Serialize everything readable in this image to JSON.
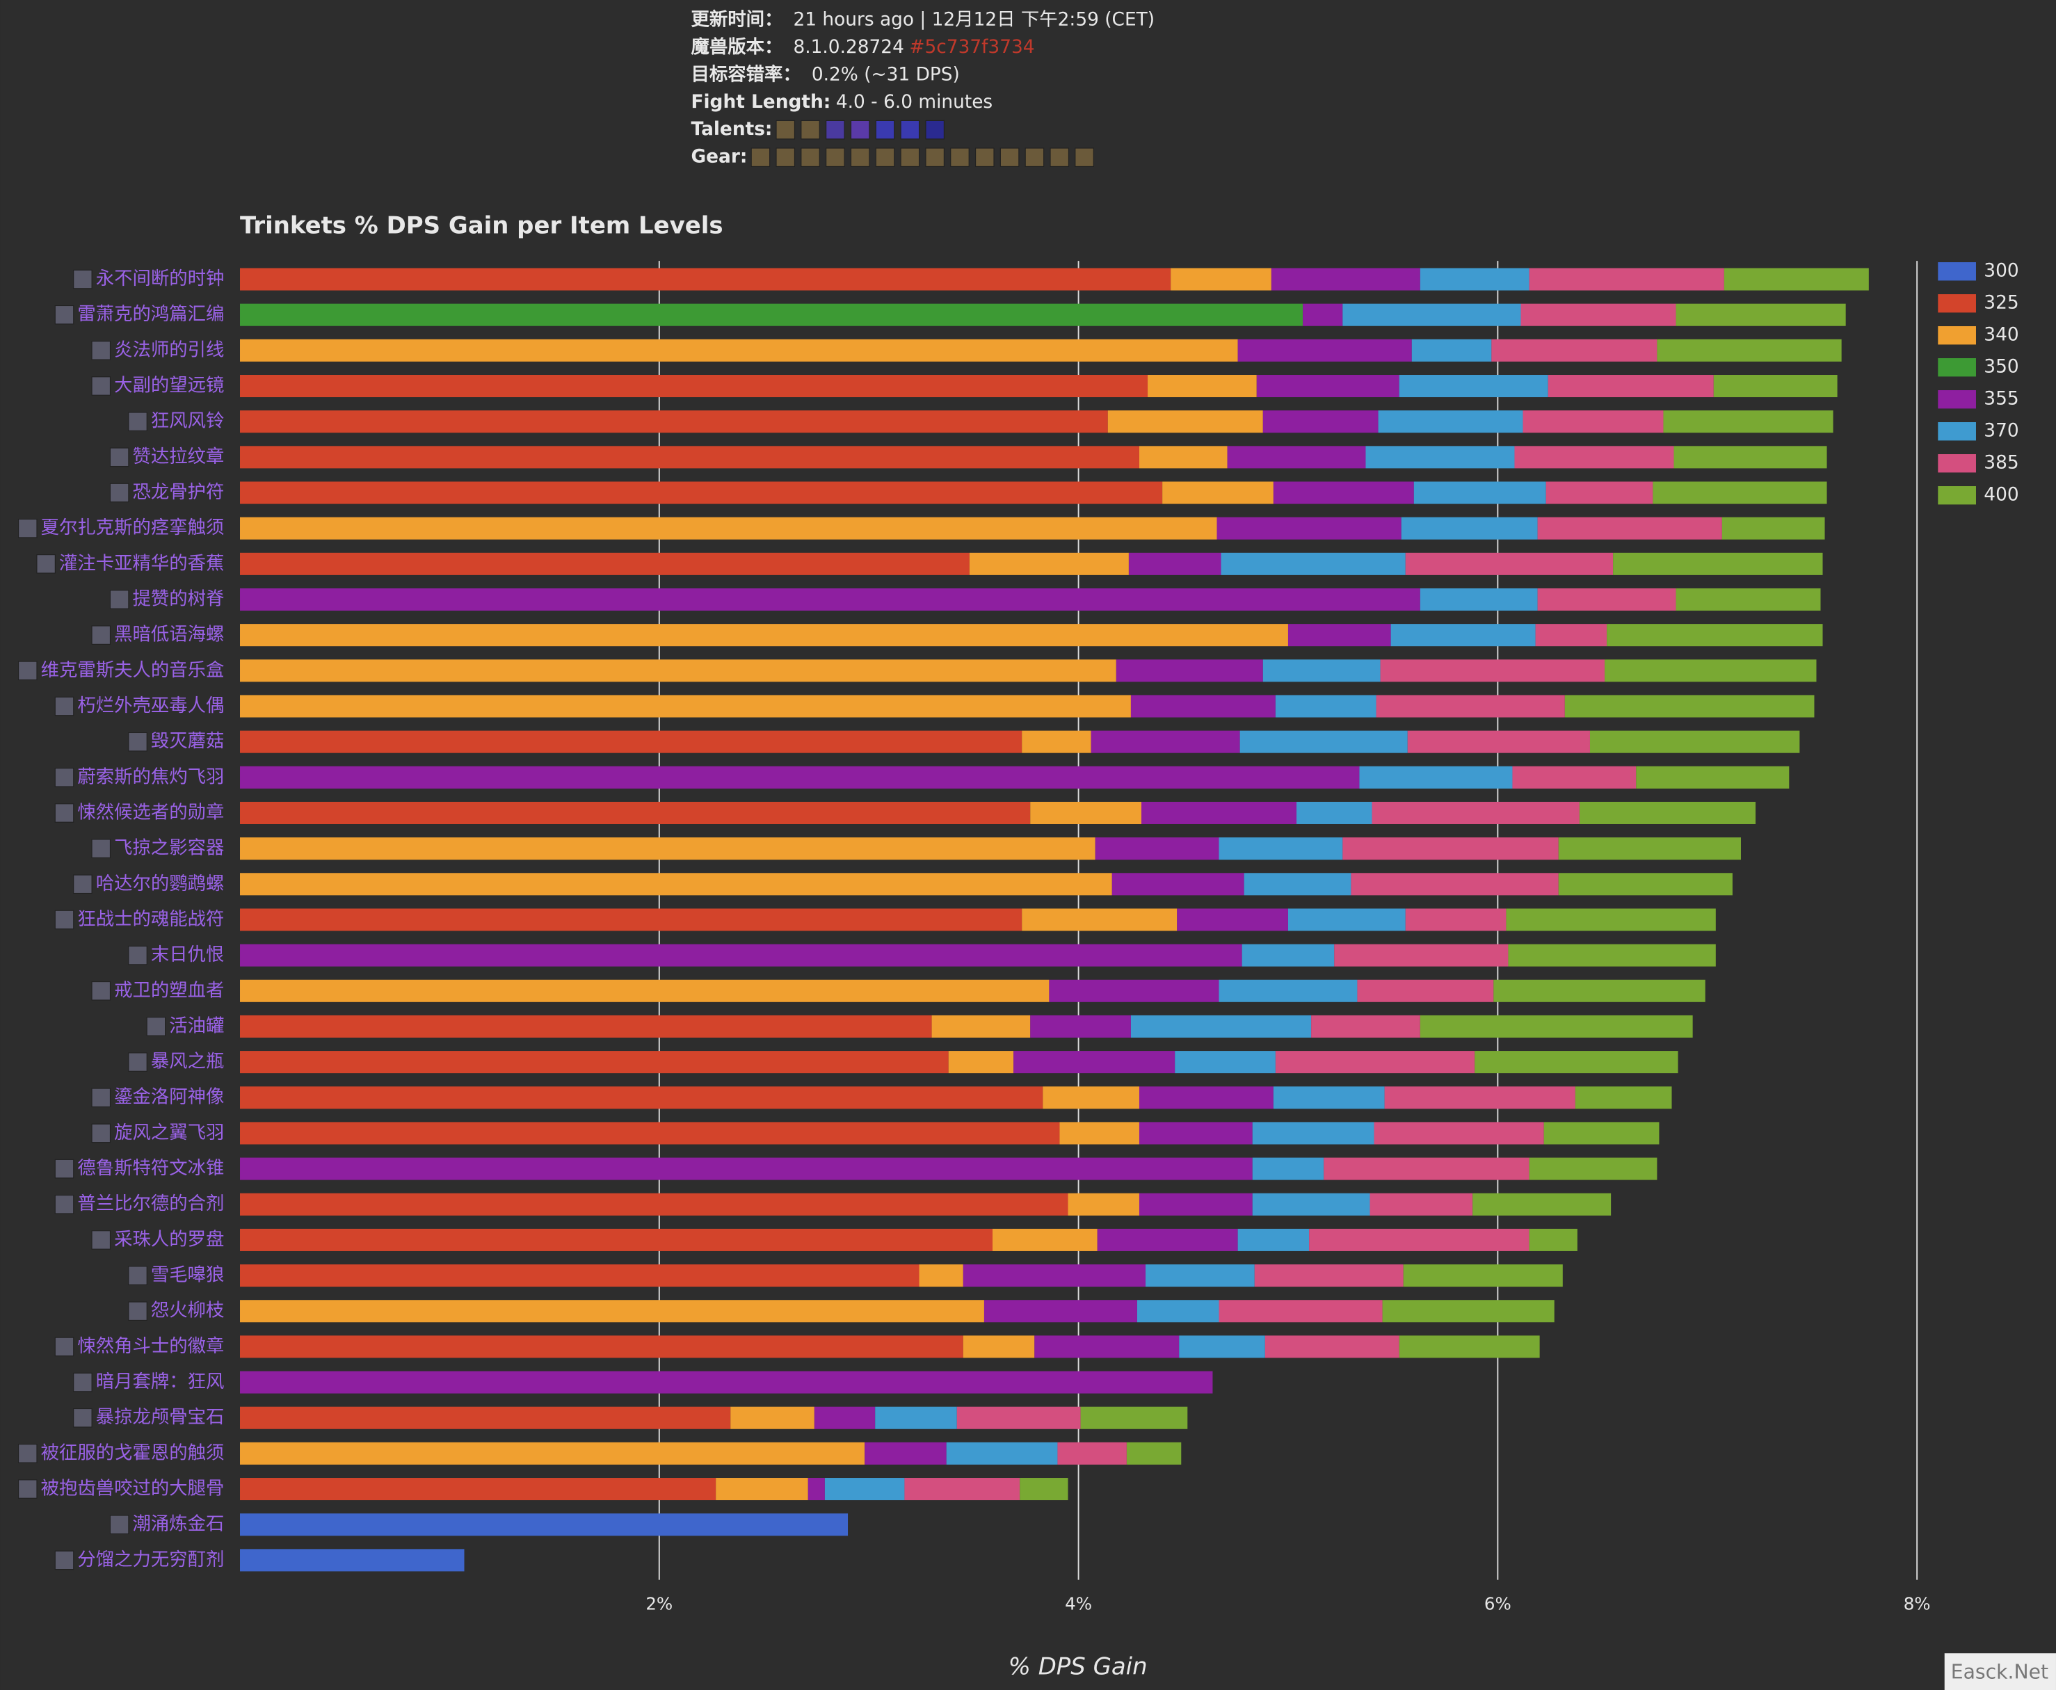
{
  "header": {
    "update_label": "更新时间：",
    "update_value": "21 hours ago | 12月12日 下午2:59 (CET)",
    "version_label": "魔兽版本：",
    "version_value": "8.1.0.28724",
    "version_hash": "#5c737f3734",
    "tolerance_label": "目标容错率：",
    "tolerance_value": "0.2% (~31 DPS)",
    "fight_label": "Fight Length:",
    "fight_value": "4.0 - 6.0 minutes",
    "talents_label": "Talents:",
    "gear_label": "Gear:"
  },
  "watermark": "Easck.Net",
  "chart_data": {
    "type": "stacked-bar-horizontal",
    "title": "Trinkets % DPS Gain per Item Levels",
    "x_label": "% DPS Gain",
    "categories": [
      "永不间断的时钟",
      "雷萧克的鸿篇汇编",
      "炎法师的引线",
      "大副的望远镜",
      "狂风风铃",
      "赞达拉纹章",
      "恐龙骨护符",
      "夏尔扎克斯的痉挛触须",
      "灌注卡亚精华的香蕉",
      "提赞的树脊",
      "黑暗低语海螺",
      "维克雷斯夫人的音乐盒",
      "朽烂外壳巫毒人偶",
      "毁灭蘑菇",
      "蔚索斯的焦灼飞羽",
      "悚然候选者的勋章",
      "飞掠之影容器",
      "哈达尔的鹦鹉螺",
      "狂战士的魂能战符",
      "末日仇恨",
      "戒卫的塑血者",
      "活油罐",
      "暴风之瓶",
      "鎏金洛阿神像",
      "旋风之翼飞羽",
      "德鲁斯特符文冰锥",
      "普兰比尔德的合剂",
      "采珠人的罗盘",
      "雪毛嗥狼",
      "怨火柳枝",
      "悚然角斗士的徽章",
      "暗月套牌：狂风",
      "暴掠龙颅骨宝石",
      "被征服的戈霍恩的触须",
      "被抱齿兽咬过的大腿骨",
      "潮涌炼金石",
      "分馏之力无穷酊剂"
    ],
    "series": [
      {
        "name": "300",
        "color": "#3f66cc",
        "values": [
          null,
          null,
          null,
          null,
          null,
          null,
          null,
          null,
          null,
          null,
          null,
          null,
          null,
          null,
          null,
          null,
          null,
          null,
          null,
          null,
          null,
          null,
          null,
          null,
          null,
          null,
          null,
          null,
          null,
          null,
          null,
          null,
          null,
          null,
          null,
          2.9,
          1.07
        ]
      },
      {
        "name": "325",
        "color": "#d3442b",
        "values": [
          4.44,
          null,
          null,
          4.33,
          4.14,
          4.29,
          4.4,
          null,
          3.48,
          null,
          null,
          null,
          null,
          3.73,
          null,
          3.77,
          null,
          null,
          3.73,
          null,
          null,
          3.3,
          3.38,
          3.83,
          3.91,
          null,
          3.95,
          3.59,
          3.24,
          null,
          3.45,
          null,
          2.34,
          null,
          2.27,
          null,
          null
        ]
      },
      {
        "name": "340",
        "color": "#f0a030",
        "values": [
          0.48,
          null,
          4.76,
          0.52,
          0.74,
          0.42,
          0.53,
          4.66,
          0.76,
          null,
          5.0,
          4.18,
          4.25,
          0.33,
          null,
          0.53,
          4.08,
          4.16,
          0.74,
          null,
          3.86,
          0.47,
          0.31,
          0.46,
          0.38,
          null,
          0.34,
          0.5,
          0.21,
          3.55,
          0.34,
          null,
          0.4,
          2.98,
          0.44,
          null,
          null
        ]
      },
      {
        "name": "350",
        "color": "#3d9a34",
        "values": [
          null,
          5.07,
          null,
          null,
          null,
          null,
          null,
          null,
          null,
          null,
          null,
          null,
          null,
          null,
          null,
          null,
          null,
          null,
          null,
          null,
          null,
          null,
          null,
          null,
          null,
          null,
          null,
          null,
          null,
          null,
          null,
          null,
          null,
          null,
          null,
          null,
          null
        ]
      },
      {
        "name": "355",
        "color": "#8e1fa0",
        "values": [
          0.71,
          0.19,
          0.83,
          0.68,
          0.55,
          0.66,
          0.67,
          0.88,
          0.44,
          5.63,
          0.49,
          0.7,
          0.69,
          0.71,
          5.34,
          0.74,
          0.59,
          0.63,
          0.53,
          4.78,
          0.81,
          0.48,
          0.77,
          0.64,
          0.54,
          4.83,
          0.54,
          0.67,
          0.87,
          0.73,
          0.69,
          4.64,
          0.29,
          0.39,
          0.08,
          null,
          null
        ]
      },
      {
        "name": "370",
        "color": "#3f9bd0",
        "values": [
          0.52,
          0.85,
          0.38,
          0.71,
          0.69,
          0.71,
          0.63,
          0.65,
          0.88,
          0.56,
          0.69,
          0.56,
          0.48,
          0.8,
          0.73,
          0.36,
          0.59,
          0.51,
          0.56,
          0.44,
          0.66,
          0.86,
          0.48,
          0.53,
          0.58,
          0.34,
          0.56,
          0.34,
          0.52,
          0.39,
          0.41,
          null,
          0.39,
          0.53,
          0.38,
          null,
          null
        ]
      },
      {
        "name": "385",
        "color": "#d44f7f",
        "values": [
          0.93,
          0.74,
          0.79,
          0.79,
          0.67,
          0.76,
          0.51,
          0.88,
          0.99,
          0.66,
          0.34,
          1.07,
          0.9,
          0.87,
          0.59,
          0.99,
          1.03,
          0.99,
          0.48,
          0.83,
          0.65,
          0.52,
          0.95,
          0.91,
          0.81,
          0.98,
          0.49,
          1.05,
          0.71,
          0.78,
          0.64,
          null,
          0.59,
          0.33,
          0.55,
          null,
          null
        ]
      },
      {
        "name": "400",
        "color": "#79a933",
        "values": [
          0.69,
          0.81,
          0.88,
          0.59,
          0.81,
          0.73,
          0.83,
          0.49,
          1.0,
          0.69,
          1.03,
          1.01,
          1.19,
          1.0,
          0.73,
          0.84,
          0.87,
          0.83,
          1.0,
          0.99,
          1.01,
          1.3,
          0.97,
          0.46,
          0.55,
          0.61,
          0.66,
          0.23,
          0.76,
          0.82,
          0.67,
          null,
          0.51,
          0.26,
          0.23,
          null,
          null
        ]
      }
    ],
    "xlim": [
      0,
      8
    ],
    "xticks": [
      {
        "value": 2,
        "label": "2%"
      },
      {
        "value": 4,
        "label": "4%"
      },
      {
        "value": 6,
        "label": "6%"
      },
      {
        "value": 8,
        "label": "8%"
      }
    ],
    "grid": true
  }
}
